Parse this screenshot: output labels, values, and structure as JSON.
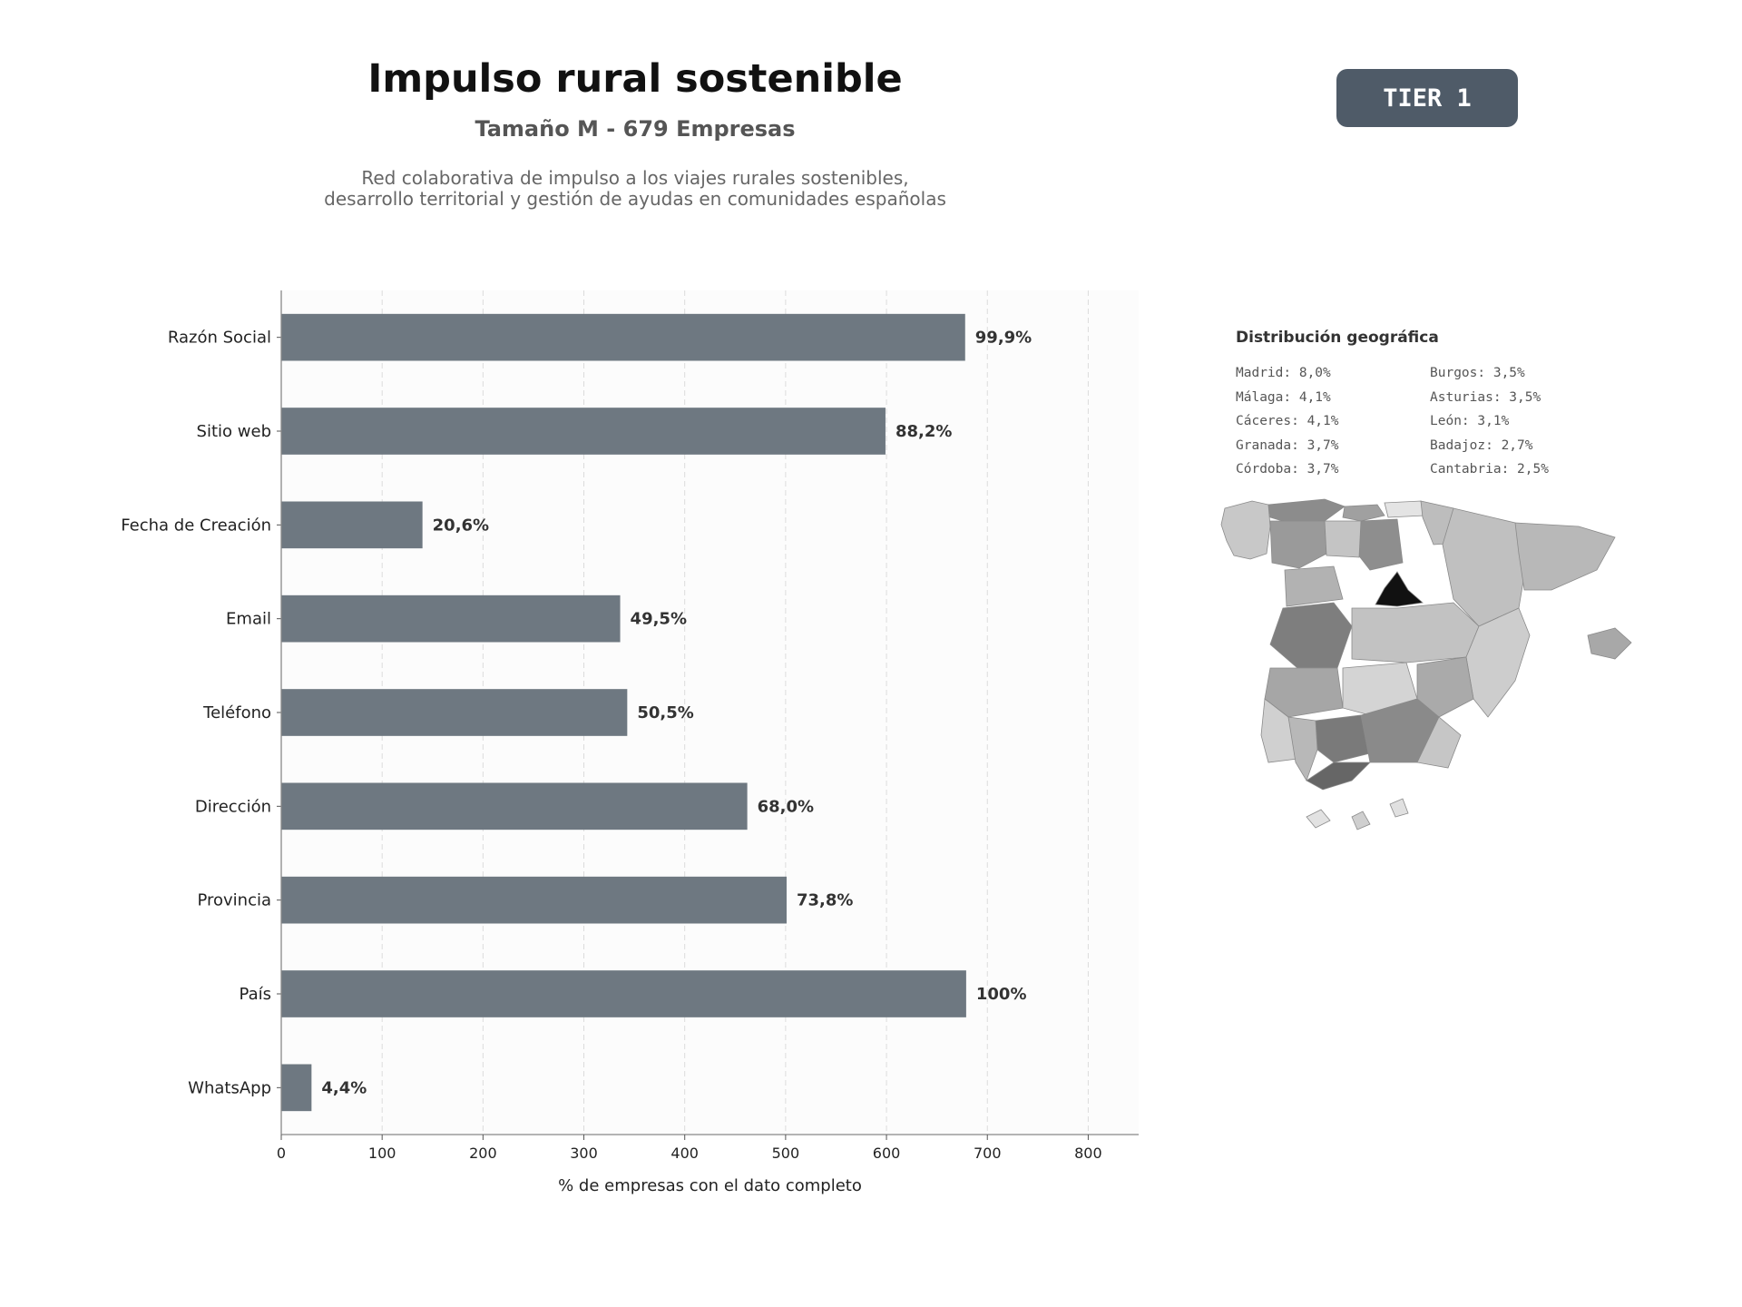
{
  "header": {
    "title": "Impulso rural sostenible",
    "subtitle": "Tamaño M - 679 Empresas",
    "description_line1": "Red colaborativa de impulso a los viajes rurales sostenibles,",
    "description_line2": "desarrollo territorial y gestión de ayudas en comunidades españolas",
    "tier": "TIER 1"
  },
  "chart_data": {
    "type": "bar",
    "orientation": "horizontal",
    "categories": [
      "Razón Social",
      "Sitio web",
      "Fecha de Creación",
      "Email",
      "Teléfono",
      "Dirección",
      "Provincia",
      "País",
      "WhatsApp"
    ],
    "values": [
      678,
      599,
      140,
      336,
      343,
      462,
      501,
      679,
      30
    ],
    "data_labels": [
      "99,9%",
      "88,2%",
      "20,6%",
      "49,5%",
      "50,5%",
      "68,0%",
      "73,8%",
      "100%",
      "4,4%"
    ],
    "xlabel": "% de empresas con el dato completo",
    "ylabel": "",
    "xlim": [
      0,
      850
    ],
    "xticks": [
      0,
      100,
      200,
      300,
      400,
      500,
      600,
      700,
      800
    ],
    "grid": "vertical dashed",
    "bar_color": "#6e7881"
  },
  "geo": {
    "title": "Distribución geográfica",
    "items": [
      "Madrid: 8,0%",
      "Burgos: 3,5%",
      "Málaga: 4,1%",
      "Asturias: 3,5%",
      "Cáceres: 4,1%",
      "León: 3,1%",
      "Granada: 3,7%",
      "Badajoz: 2,7%",
      "Córdoba: 3,7%",
      "Cantabria: 2,5%"
    ]
  }
}
